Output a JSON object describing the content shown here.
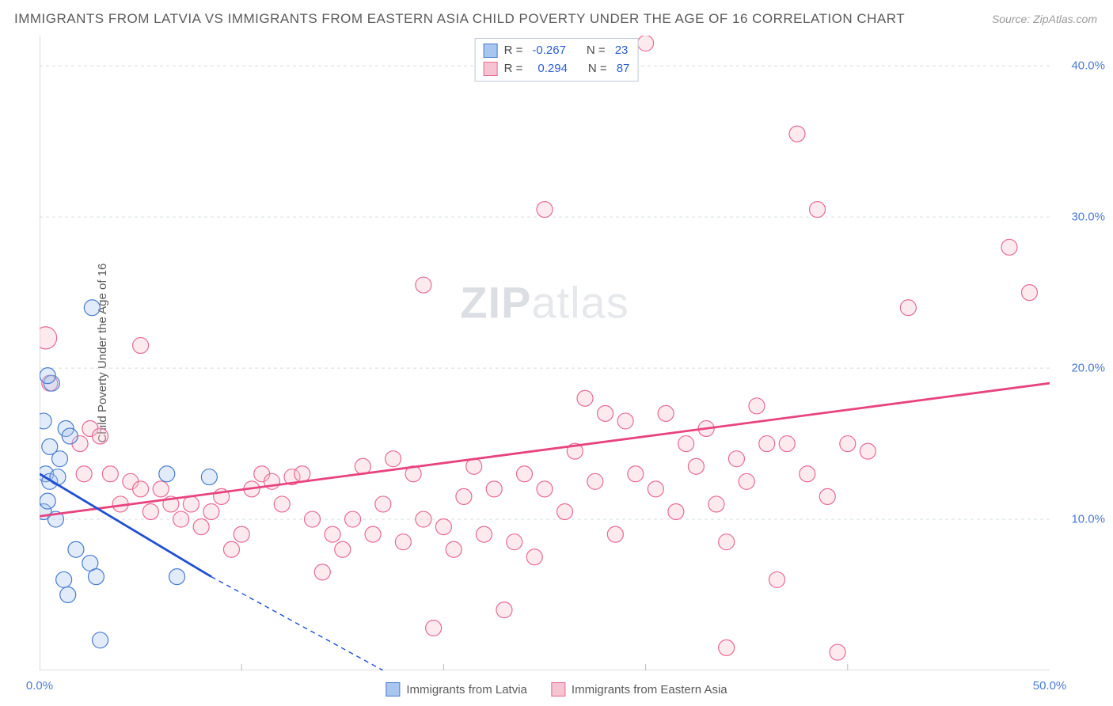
{
  "title": "IMMIGRANTS FROM LATVIA VS IMMIGRANTS FROM EASTERN ASIA CHILD POVERTY UNDER THE AGE OF 16 CORRELATION CHART",
  "source_label": "Source: ZipAtlas.com",
  "ylabel": "Child Poverty Under the Age of 16",
  "watermark": {
    "bold": "ZIP",
    "light": "atlas"
  },
  "chart": {
    "type": "scatter",
    "xlim": [
      0,
      50
    ],
    "ylim": [
      0,
      42
    ],
    "xtick_labels": [
      "0.0%",
      "50.0%"
    ],
    "xtick_positions": [
      0,
      50
    ],
    "xtick_minor": [
      10,
      20,
      30,
      40
    ],
    "ytick_labels": [
      "10.0%",
      "20.0%",
      "30.0%",
      "40.0%"
    ],
    "ytick_positions": [
      10,
      20,
      30,
      40
    ],
    "grid_color": "#d7dce3",
    "grid_dash": "4,4",
    "axis_color": "#b8b8b8",
    "background_color": "#ffffff",
    "marker_radius": 10,
    "marker_radius_large": 14,
    "marker_fill_opacity": 0.35,
    "marker_stroke_width": 1.2,
    "trend_stroke_width": 2.8,
    "trend_dash_width": 1.4
  },
  "series": [
    {
      "key": "latvia",
      "label": "Immigrants from Latvia",
      "color_fill": "#a9c6ee",
      "color_stroke": "#4a7bd0",
      "trend_color": "#1f4fd4",
      "R": "-0.267",
      "N": "23",
      "trend": {
        "x1": 0,
        "y1": 13.0,
        "x2": 8.5,
        "y2": 6.2,
        "ext_x2": 17,
        "ext_y2": 0
      },
      "points": [
        {
          "x": 0.3,
          "y": 13.0
        },
        {
          "x": 0.5,
          "y": 12.5
        },
        {
          "x": 0.2,
          "y": 10.5
        },
        {
          "x": 0.4,
          "y": 11.2
        },
        {
          "x": 1.0,
          "y": 14.0
        },
        {
          "x": 1.3,
          "y": 16.0
        },
        {
          "x": 1.5,
          "y": 15.5
        },
        {
          "x": 2.6,
          "y": 24.0
        },
        {
          "x": 0.6,
          "y": 19.0
        },
        {
          "x": 0.4,
          "y": 19.5
        },
        {
          "x": 0.2,
          "y": 16.5
        },
        {
          "x": 0.8,
          "y": 10.0
        },
        {
          "x": 1.8,
          "y": 8.0
        },
        {
          "x": 1.2,
          "y": 6.0
        },
        {
          "x": 2.5,
          "y": 7.1
        },
        {
          "x": 2.8,
          "y": 6.2
        },
        {
          "x": 1.4,
          "y": 5.0
        },
        {
          "x": 3.0,
          "y": 2.0
        },
        {
          "x": 0.9,
          "y": 12.8
        },
        {
          "x": 6.8,
          "y": 6.2
        },
        {
          "x": 6.3,
          "y": 13.0
        },
        {
          "x": 8.4,
          "y": 12.8
        },
        {
          "x": 0.5,
          "y": 14.8
        }
      ]
    },
    {
      "key": "eastern_asia",
      "label": "Immigrants from Eastern Asia",
      "color_fill": "#f6c3d2",
      "color_stroke": "#e86a94",
      "trend_color": "#e8437e",
      "R": "0.294",
      "N": "87",
      "trend": {
        "x1": 0,
        "y1": 10.2,
        "x2": 50,
        "y2": 19.0
      },
      "points": [
        {
          "x": 0.3,
          "y": 22.0,
          "large": true
        },
        {
          "x": 0.5,
          "y": 19.0
        },
        {
          "x": 2.0,
          "y": 15.0
        },
        {
          "x": 2.5,
          "y": 16.0
        },
        {
          "x": 3.0,
          "y": 15.5
        },
        {
          "x": 2.2,
          "y": 13.0
        },
        {
          "x": 3.5,
          "y": 13.0
        },
        {
          "x": 4.0,
          "y": 11.0
        },
        {
          "x": 4.5,
          "y": 12.5
        },
        {
          "x": 5.0,
          "y": 12.0
        },
        {
          "x": 5.0,
          "y": 21.5
        },
        {
          "x": 5.5,
          "y": 10.5
        },
        {
          "x": 6.0,
          "y": 12.0
        },
        {
          "x": 6.5,
          "y": 11.0
        },
        {
          "x": 7.0,
          "y": 10.0
        },
        {
          "x": 7.5,
          "y": 11.0
        },
        {
          "x": 8.0,
          "y": 9.5
        },
        {
          "x": 8.5,
          "y": 10.5
        },
        {
          "x": 9.0,
          "y": 11.5
        },
        {
          "x": 9.5,
          "y": 8.0
        },
        {
          "x": 10.0,
          "y": 9.0
        },
        {
          "x": 10.5,
          "y": 12.0
        },
        {
          "x": 11.0,
          "y": 13.0
        },
        {
          "x": 11.5,
          "y": 12.5
        },
        {
          "x": 12.0,
          "y": 11.0
        },
        {
          "x": 12.5,
          "y": 12.8
        },
        {
          "x": 13.0,
          "y": 13.0
        },
        {
          "x": 13.5,
          "y": 10.0
        },
        {
          "x": 14.0,
          "y": 6.5
        },
        {
          "x": 14.5,
          "y": 9.0
        },
        {
          "x": 15.0,
          "y": 8.0
        },
        {
          "x": 15.5,
          "y": 10.0
        },
        {
          "x": 16.0,
          "y": 13.5
        },
        {
          "x": 16.5,
          "y": 9.0
        },
        {
          "x": 17.0,
          "y": 11.0
        },
        {
          "x": 17.5,
          "y": 14.0
        },
        {
          "x": 18.0,
          "y": 8.5
        },
        {
          "x": 18.5,
          "y": 13.0
        },
        {
          "x": 19.0,
          "y": 10.0
        },
        {
          "x": 19.5,
          "y": 2.8
        },
        {
          "x": 20.0,
          "y": 9.5
        },
        {
          "x": 20.5,
          "y": 8.0
        },
        {
          "x": 21.0,
          "y": 11.5
        },
        {
          "x": 21.5,
          "y": 13.5
        },
        {
          "x": 22.0,
          "y": 9.0
        },
        {
          "x": 22.5,
          "y": 12.0
        },
        {
          "x": 23.0,
          "y": 4.0
        },
        {
          "x": 23.5,
          "y": 8.5
        },
        {
          "x": 24.0,
          "y": 13.0
        },
        {
          "x": 24.5,
          "y": 7.5
        },
        {
          "x": 25.0,
          "y": 12.0
        },
        {
          "x": 19.0,
          "y": 25.5
        },
        {
          "x": 25.0,
          "y": 30.5
        },
        {
          "x": 26.0,
          "y": 10.5
        },
        {
          "x": 26.5,
          "y": 14.5
        },
        {
          "x": 27.0,
          "y": 18.0
        },
        {
          "x": 27.5,
          "y": 12.5
        },
        {
          "x": 28.0,
          "y": 17.0
        },
        {
          "x": 28.5,
          "y": 9.0
        },
        {
          "x": 29.0,
          "y": 16.5
        },
        {
          "x": 29.5,
          "y": 13.0
        },
        {
          "x": 30.0,
          "y": 41.5
        },
        {
          "x": 30.5,
          "y": 12.0
        },
        {
          "x": 31.0,
          "y": 17.0
        },
        {
          "x": 31.5,
          "y": 10.5
        },
        {
          "x": 32.0,
          "y": 15.0
        },
        {
          "x": 32.5,
          "y": 13.5
        },
        {
          "x": 33.0,
          "y": 16.0
        },
        {
          "x": 33.5,
          "y": 11.0
        },
        {
          "x": 34.0,
          "y": 8.5
        },
        {
          "x": 34.5,
          "y": 14.0
        },
        {
          "x": 35.0,
          "y": 12.5
        },
        {
          "x": 35.5,
          "y": 17.5
        },
        {
          "x": 36.0,
          "y": 15.0
        },
        {
          "x": 36.5,
          "y": 6.0
        },
        {
          "x": 37.0,
          "y": 15.0
        },
        {
          "x": 37.5,
          "y": 35.5
        },
        {
          "x": 38.0,
          "y": 13.0
        },
        {
          "x": 38.5,
          "y": 30.5
        },
        {
          "x": 39.0,
          "y": 11.5
        },
        {
          "x": 40.0,
          "y": 15.0
        },
        {
          "x": 41.0,
          "y": 14.5
        },
        {
          "x": 34.0,
          "y": 1.5
        },
        {
          "x": 43.0,
          "y": 24.0
        },
        {
          "x": 48.0,
          "y": 28.0
        },
        {
          "x": 49.0,
          "y": 25.0
        },
        {
          "x": 39.5,
          "y": 1.2
        }
      ]
    }
  ],
  "legend_top_labels": {
    "R": "R =",
    "N": "N ="
  },
  "colors": {
    "title": "#5a5a5a",
    "source": "#9a9a9a",
    "tick": "#4a7bd0",
    "legend_value": "#2a5fd0"
  }
}
